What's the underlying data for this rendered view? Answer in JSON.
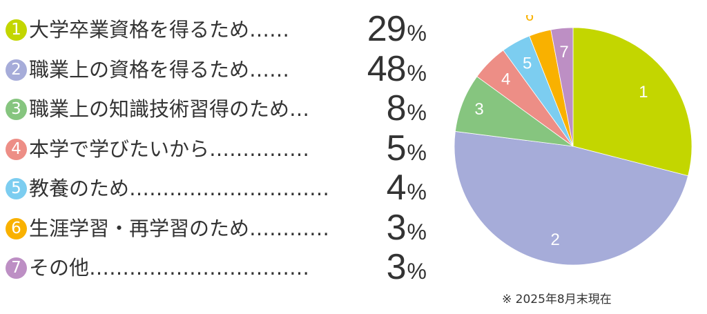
{
  "chart_data": {
    "type": "pie",
    "categories": [
      "大学卒業資格を得るため……",
      "職業上の資格を得るため……",
      "職業上の知識技術習得のため…",
      "本学で学びたいから……………",
      "教養のため…………………………",
      "生涯学習・再学習のため…………",
      "その他……………………………"
    ],
    "markers": [
      "1",
      "2",
      "3",
      "4",
      "5",
      "6",
      "7"
    ],
    "values": [
      29,
      48,
      8,
      5,
      4,
      3,
      3
    ],
    "unit": "%",
    "colors": [
      "#c3d600",
      "#a6acd9",
      "#86c57f",
      "#ed8e86",
      "#7ccdf0",
      "#f9b100",
      "#bd8fc4"
    ],
    "start_angle": "12 o'clock",
    "direction": "clockwise",
    "legend_position": "left"
  },
  "note": "※ 2025年8月末現在"
}
